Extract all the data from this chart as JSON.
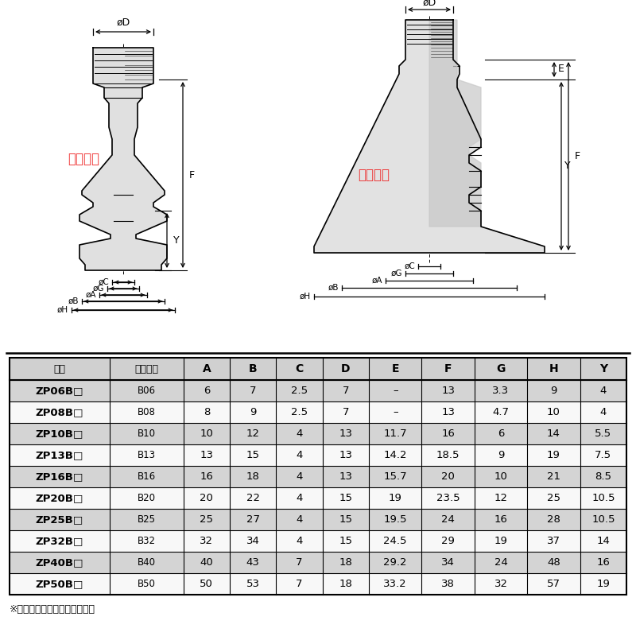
{
  "bg_color": "#ffffff",
  "table_headers": [
    "型号",
    "公称直径",
    "A",
    "B",
    "C",
    "D",
    "E",
    "F",
    "G",
    "H",
    "Y"
  ],
  "table_rows": [
    [
      "ZP06B□",
      "B06",
      "6",
      "7",
      "2.5",
      "7",
      "–",
      "13",
      "3.3",
      "9",
      "4"
    ],
    [
      "ZP08B□",
      "B08",
      "8",
      "9",
      "2.5",
      "7",
      "–",
      "13",
      "4.7",
      "10",
      "4"
    ],
    [
      "ZP10B□",
      "B10",
      "10",
      "12",
      "4",
      "13",
      "11.7",
      "16",
      "6",
      "14",
      "5.5"
    ],
    [
      "ZP13B□",
      "B13",
      "13",
      "15",
      "4",
      "13",
      "14.2",
      "18.5",
      "9",
      "19",
      "7.5"
    ],
    [
      "ZP16B□",
      "B16",
      "16",
      "18",
      "4",
      "13",
      "15.7",
      "20",
      "10",
      "21",
      "8.5"
    ],
    [
      "ZP20B□",
      "B20",
      "20",
      "22",
      "4",
      "15",
      "19",
      "23.5",
      "12",
      "25",
      "10.5"
    ],
    [
      "ZP25B□",
      "B25",
      "25",
      "27",
      "4",
      "15",
      "19.5",
      "24",
      "16",
      "28",
      "10.5"
    ],
    [
      "ZP32B□",
      "B32",
      "32",
      "34",
      "4",
      "15",
      "24.5",
      "29",
      "19",
      "37",
      "14"
    ],
    [
      "ZP40B□",
      "B40",
      "40",
      "43",
      "7",
      "18",
      "29.2",
      "34",
      "24",
      "48",
      "16"
    ],
    [
      "ZP50B□",
      "B50",
      "50",
      "53",
      "7",
      "18",
      "33.2",
      "38",
      "32",
      "57",
      "19"
    ]
  ],
  "footnote": "※在型号末尾应表示使用材质。",
  "watermark_text": "欧科气动",
  "watermark_color": "#ee2222"
}
